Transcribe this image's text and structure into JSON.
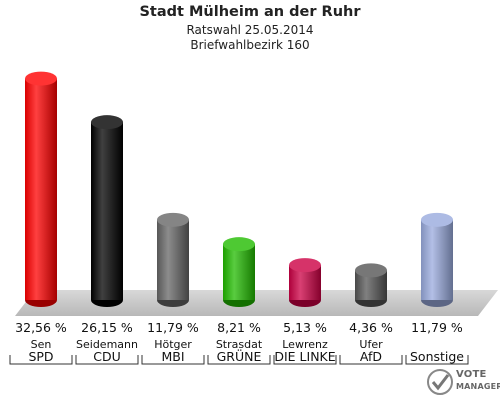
{
  "chart_data": {
    "type": "bar",
    "title": "Stadt Mülheim an der Ruhr",
    "subtitle": "Ratswahl 25.05.2014",
    "subtitle2": "Briefwahlbezirk 160",
    "categories": [
      "Sen",
      "Seidemann",
      "Hötger",
      "Strasdat",
      "Lewrenz",
      "Ufer",
      ""
    ],
    "parties": [
      "SPD",
      "CDU",
      "MBI",
      "GRÜNE",
      "DIE LINKE",
      "AfD",
      "Sonstige"
    ],
    "values": [
      32.56,
      26.15,
      11.79,
      8.21,
      5.13,
      4.36,
      11.79
    ],
    "value_labels": [
      "32,56 %",
      "26,15 %",
      "11,79 %",
      "8,21 %",
      "5,13 %",
      "4,36 %",
      "11,79 %"
    ],
    "colors": [
      "#ff0000",
      "#000000",
      "#666666",
      "#22bb00",
      "#cc0044",
      "#555555",
      "#99aadd"
    ],
    "ylim": [
      0,
      35
    ],
    "grid": false,
    "legend": "none"
  },
  "watermark": {
    "line1": "VOTE",
    "line2": "MANAGER"
  }
}
